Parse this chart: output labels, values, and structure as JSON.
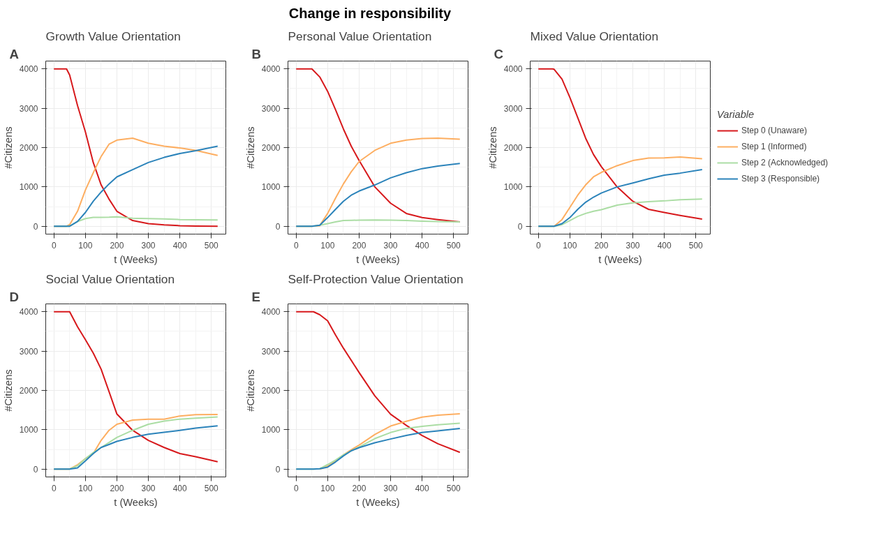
{
  "chart_data": [
    {
      "type": "line",
      "title": "Growth Value Orientation",
      "annotations": [
        "Change in responsibility",
        "A"
      ],
      "xlabel": "t (Weeks)",
      "ylabel": "#Citizens",
      "x": [
        0,
        40,
        50,
        75,
        100,
        125,
        150,
        175,
        200,
        250,
        300,
        350,
        400,
        450,
        520
      ],
      "xlim": [
        -26,
        546
      ],
      "ylim": [
        -200,
        4200
      ],
      "xticks": [
        0,
        100,
        200,
        300,
        400,
        500
      ],
      "yticks": [
        0,
        1000,
        2000,
        3000,
        4000
      ],
      "grid": true,
      "legend": false,
      "series": [
        {
          "color": "#d7191c",
          "values": [
            4000,
            4000,
            3845,
            3070,
            2400,
            1620,
            1050,
            690,
            380,
            145,
            67,
            36,
            15,
            5,
            0
          ]
        },
        {
          "color": "#fdae61",
          "values": [
            0,
            0,
            40,
            380,
            920,
            1360,
            1775,
            2085,
            2190,
            2240,
            2110,
            2035,
            1990,
            1930,
            1800
          ]
        },
        {
          "color": "#abdda4",
          "values": [
            0,
            0,
            0,
            120,
            195,
            225,
            225,
            230,
            240,
            205,
            195,
            185,
            170,
            165,
            160
          ]
        },
        {
          "color": "#2b83ba",
          "values": [
            0,
            0,
            0,
            120,
            350,
            635,
            870,
            1075,
            1255,
            1440,
            1620,
            1750,
            1850,
            1920,
            2035
          ]
        }
      ]
    },
    {
      "type": "line",
      "title": "Personal Value Orientation",
      "annotations": [
        "B"
      ],
      "xlabel": "t (Weeks)",
      "ylabel": "#Citizens",
      "x": [
        0,
        50,
        75,
        100,
        125,
        150,
        175,
        200,
        250,
        300,
        350,
        400,
        450,
        520
      ],
      "xlim": [
        -26,
        546
      ],
      "ylim": [
        -200,
        4200
      ],
      "xticks": [
        0,
        100,
        200,
        300,
        400,
        500
      ],
      "yticks": [
        0,
        1000,
        2000,
        3000,
        4000
      ],
      "grid": true,
      "legend": false,
      "series": [
        {
          "color": "#d7191c",
          "values": [
            4000,
            4000,
            3795,
            3430,
            2965,
            2475,
            2035,
            1670,
            1000,
            585,
            325,
            220,
            170,
            110
          ]
        },
        {
          "color": "#fdae61",
          "values": [
            0,
            0,
            15,
            325,
            715,
            1075,
            1385,
            1645,
            1930,
            2110,
            2190,
            2230,
            2240,
            2215
          ]
        },
        {
          "color": "#abdda4",
          "values": [
            0,
            0,
            25,
            67,
            110,
            145,
            150,
            155,
            160,
            155,
            145,
            130,
            120,
            110
          ]
        },
        {
          "color": "#2b83ba",
          "values": [
            0,
            0,
            25,
            220,
            430,
            635,
            790,
            895,
            1050,
            1230,
            1360,
            1465,
            1530,
            1595
          ]
        }
      ]
    },
    {
      "type": "line",
      "title": "Mixed Value Orientation",
      "annotations": [
        "C"
      ],
      "xlabel": "t (Weeks)",
      "ylabel": "#Citizens",
      "x": [
        0,
        45,
        50,
        75,
        100,
        125,
        150,
        175,
        200,
        250,
        300,
        350,
        400,
        450,
        520
      ],
      "xlim": [
        -26,
        546
      ],
      "ylim": [
        -200,
        4200
      ],
      "xticks": [
        0,
        100,
        200,
        300,
        400,
        500
      ],
      "yticks": [
        0,
        1000,
        2000,
        3000,
        4000
      ],
      "grid": true,
      "legend": "right",
      "legend_title": "Variable",
      "series": [
        {
          "name": "Step 0 (Unaware)",
          "color": "#d7191c",
          "values": [
            4000,
            4000,
            3990,
            3740,
            3275,
            2760,
            2240,
            1825,
            1515,
            1000,
            635,
            430,
            350,
            275,
            180
          ]
        },
        {
          "name": "Step 1 (Informed)",
          "color": "#fdae61",
          "values": [
            0,
            0,
            0,
            170,
            480,
            790,
            1050,
            1255,
            1370,
            1540,
            1670,
            1735,
            1740,
            1760,
            1715
          ]
        },
        {
          "name": "Step 2 (Acknowledged)",
          "color": "#abdda4",
          "values": [
            0,
            0,
            0,
            40,
            145,
            250,
            325,
            380,
            420,
            535,
            595,
            625,
            645,
            675,
            690
          ]
        },
        {
          "name": "Step 3 (Responsible)",
          "color": "#2b83ba",
          "values": [
            0,
            0,
            0,
            67,
            220,
            430,
            610,
            740,
            845,
            1000,
            1100,
            1205,
            1300,
            1350,
            1440
          ]
        }
      ]
    },
    {
      "type": "line",
      "title": "Social Value Orientation",
      "annotations": [
        "D"
      ],
      "xlabel": "t (Weeks)",
      "ylabel": "#Citizens",
      "x": [
        0,
        45,
        50,
        75,
        100,
        125,
        150,
        175,
        200,
        250,
        300,
        350,
        400,
        450,
        520
      ],
      "xlim": [
        -26,
        546
      ],
      "ylim": [
        -200,
        4200
      ],
      "xticks": [
        0,
        100,
        200,
        300,
        400,
        500
      ],
      "yticks": [
        0,
        1000,
        2000,
        3000,
        4000
      ],
      "grid": true,
      "legend": false,
      "series": [
        {
          "color": "#d7191c",
          "values": [
            4000,
            4000,
            4000,
            3620,
            3290,
            2950,
            2540,
            1970,
            1400,
            985,
            730,
            550,
            395,
            315,
            185
          ]
        },
        {
          "color": "#fdae61",
          "values": [
            0,
            0,
            0,
            110,
            265,
            395,
            730,
            985,
            1140,
            1245,
            1270,
            1270,
            1350,
            1385,
            1390
          ]
        },
        {
          "color": "#abdda4",
          "values": [
            0,
            0,
            0,
            85,
            265,
            420,
            550,
            675,
            805,
            985,
            1140,
            1220,
            1270,
            1295,
            1325
          ]
        },
        {
          "color": "#2b83ba",
          "values": [
            0,
            0,
            0,
            30,
            210,
            395,
            550,
            625,
            705,
            805,
            885,
            935,
            985,
            1040,
            1100
          ]
        }
      ]
    },
    {
      "type": "line",
      "title": "Self-Protection Value Orientation",
      "annotations": [
        "E"
      ],
      "xlabel": "t (Weeks)",
      "ylabel": "#Citizens",
      "x": [
        0,
        55,
        75,
        100,
        125,
        150,
        175,
        200,
        250,
        300,
        350,
        400,
        450,
        520
      ],
      "xlim": [
        -26,
        546
      ],
      "ylim": [
        -200,
        4200
      ],
      "xticks": [
        0,
        100,
        200,
        300,
        400,
        500
      ],
      "yticks": [
        0,
        1000,
        2000,
        3000,
        4000
      ],
      "grid": true,
      "legend": false,
      "series": [
        {
          "color": "#d7191c",
          "values": [
            4000,
            4000,
            3925,
            3770,
            3410,
            3075,
            2765,
            2455,
            1860,
            1395,
            1110,
            855,
            645,
            425
          ]
        },
        {
          "color": "#fdae61",
          "x": [
            75,
            100,
            125,
            150,
            175,
            200,
            250,
            300,
            350,
            400,
            450,
            520
          ],
          "values": [
            0,
            75,
            205,
            360,
            490,
            610,
            880,
            1095,
            1215,
            1320,
            1370,
            1405
          ]
        },
        {
          "color": "#abdda4",
          "values": [
            0,
            0,
            10,
            115,
            230,
            360,
            465,
            560,
            775,
            930,
            1035,
            1085,
            1125,
            1165
          ]
        },
        {
          "color": "#2b83ba",
          "values": [
            0,
            0,
            10,
            50,
            180,
            335,
            465,
            545,
            670,
            765,
            855,
            930,
            970,
            1035
          ]
        }
      ]
    }
  ]
}
